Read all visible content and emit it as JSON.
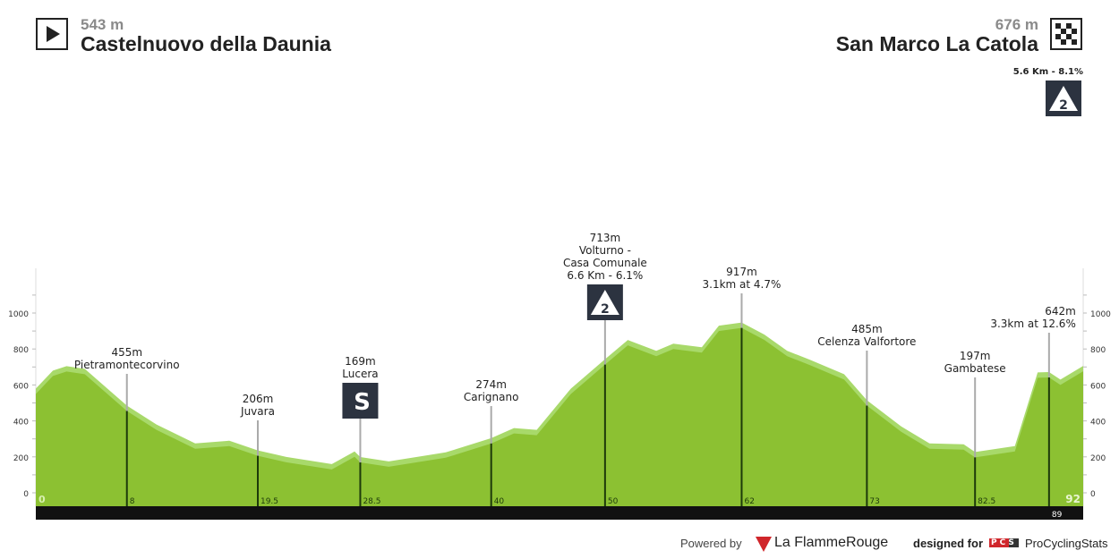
{
  "start": {
    "elevation": "543 m",
    "town": "Castelnuovo della Daunia"
  },
  "finish": {
    "elevation": "676 m",
    "town": "San Marco La Catola",
    "climb": "5.6 Km - 8.1%",
    "climb_category": "2"
  },
  "footer": {
    "powered": "Powered by",
    "brand1": "La FlammeRouge",
    "designed": "designed for",
    "pcs": "PCS",
    "brand2": "ProCyclingStats"
  },
  "colors": {
    "profile": "#8cc132",
    "profile_light": "#a8d96a",
    "bar": "#111111"
  },
  "chart_data": {
    "type": "area",
    "xlabel": "km",
    "ylabel": "m",
    "ylim": [
      0,
      1000
    ],
    "xlim": [
      0,
      92
    ],
    "yticks": [
      0,
      200,
      400,
      600,
      800,
      1000
    ],
    "profile": [
      [
        0,
        550
      ],
      [
        1.5,
        650
      ],
      [
        2.7,
        675
      ],
      [
        4.3,
        660
      ],
      [
        8,
        455
      ],
      [
        10.6,
        350
      ],
      [
        14,
        245
      ],
      [
        17,
        260
      ],
      [
        19.5,
        206
      ],
      [
        22,
        170
      ],
      [
        26,
        130
      ],
      [
        28,
        200
      ],
      [
        28.5,
        169
      ],
      [
        31,
        145
      ],
      [
        36,
        195
      ],
      [
        40,
        274
      ],
      [
        42,
        330
      ],
      [
        44,
        320
      ],
      [
        47,
        550
      ],
      [
        50,
        713
      ],
      [
        52,
        820
      ],
      [
        54.5,
        760
      ],
      [
        56,
        800
      ],
      [
        58.5,
        780
      ],
      [
        60,
        900
      ],
      [
        62,
        917
      ],
      [
        64,
        850
      ],
      [
        66,
        760
      ],
      [
        68,
        710
      ],
      [
        71,
        630
      ],
      [
        73,
        485
      ],
      [
        76,
        340
      ],
      [
        78.5,
        245
      ],
      [
        81.5,
        240
      ],
      [
        82.5,
        197
      ],
      [
        86,
        230
      ],
      [
        88,
        640
      ],
      [
        89,
        642
      ],
      [
        90,
        600
      ],
      [
        92,
        676
      ]
    ],
    "markers": [
      {
        "km": 8,
        "km_label": "8",
        "lines": [
          "455m",
          "Pietramontecorvino"
        ]
      },
      {
        "km": 19.5,
        "km_label": "19.5",
        "lines": [
          "206m",
          "Juvara"
        ]
      },
      {
        "km": 28.5,
        "km_label": "28.5",
        "lines": [
          "169m",
          "Lucera"
        ],
        "badge": "S"
      },
      {
        "km": 40,
        "km_label": "40",
        "lines": [
          "274m",
          "Carignano"
        ]
      },
      {
        "km": 50,
        "km_label": "50",
        "lines": [
          "713m",
          "Volturno -",
          "Casa Comunale",
          "6.6 Km - 6.1%"
        ],
        "badge": "2"
      },
      {
        "km": 62,
        "km_label": "62",
        "lines": [
          "917m",
          "3.1km at 4.7%"
        ]
      },
      {
        "km": 73,
        "km_label": "73",
        "lines": [
          "485m",
          "Celenza Valfortore"
        ]
      },
      {
        "km": 82.5,
        "km_label": "82.5",
        "lines": [
          "197m",
          "Gambatese"
        ]
      },
      {
        "km": 89,
        "km_label": "89",
        "lines": [
          "642m",
          "3.3km at 12.6%"
        ]
      }
    ],
    "start_label": "0",
    "end_label": "92"
  }
}
